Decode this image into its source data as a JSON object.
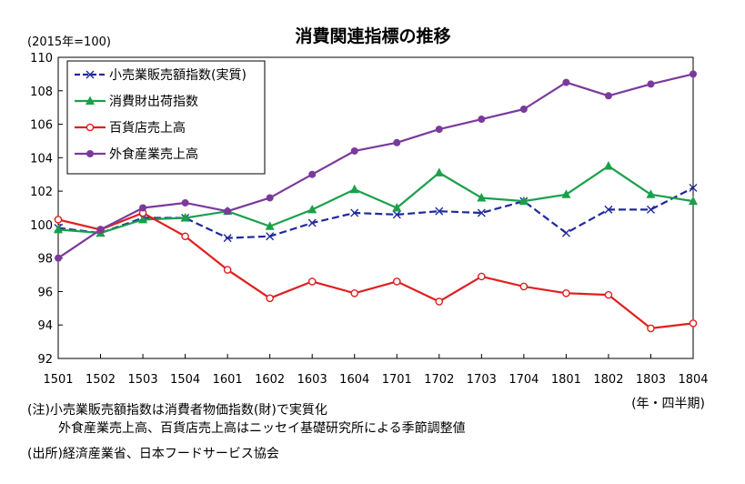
{
  "chart_data": {
    "type": "line",
    "title": "消費関連指標の推移",
    "unit_label": "(2015年=100)",
    "xlabel": "(年・四半期)",
    "ylabel": "",
    "categories": [
      "1501",
      "1502",
      "1503",
      "1504",
      "1601",
      "1602",
      "1603",
      "1604",
      "1701",
      "1702",
      "1703",
      "1704",
      "1801",
      "1802",
      "1803",
      "1804"
    ],
    "ylim": [
      92,
      110
    ],
    "yticks": [
      92,
      94,
      96,
      98,
      100,
      102,
      104,
      106,
      108,
      110
    ],
    "grid": false,
    "legend_position": "top-left",
    "series": [
      {
        "name": "小売業販売額指数(実質)",
        "color": "#1f2a9c",
        "dash": "8,4",
        "marker": "x",
        "values": [
          99.8,
          99.5,
          100.4,
          100.4,
          99.2,
          99.3,
          100.1,
          100.7,
          100.6,
          100.8,
          100.7,
          101.4,
          99.5,
          100.9,
          100.9,
          102.2
        ]
      },
      {
        "name": "消費財出荷指数",
        "color": "#1aa04a",
        "dash": "",
        "marker": "triangle",
        "values": [
          99.7,
          99.5,
          100.3,
          100.4,
          100.8,
          99.9,
          100.9,
          102.1,
          101.0,
          103.1,
          101.6,
          101.4,
          101.8,
          103.5,
          101.8,
          101.4
        ]
      },
      {
        "name": "百貨店売上高",
        "color": "#e02020",
        "dash": "",
        "marker": "circle-open",
        "values": [
          100.3,
          99.7,
          100.7,
          99.3,
          97.3,
          95.6,
          96.6,
          95.9,
          96.6,
          95.4,
          96.9,
          96.3,
          95.9,
          95.8,
          93.8,
          94.1
        ]
      },
      {
        "name": "外食産業売上高",
        "color": "#7a3a9c",
        "dash": "",
        "marker": "circle",
        "values": [
          98.0,
          99.7,
          101.0,
          101.3,
          100.8,
          101.6,
          103.0,
          104.4,
          104.9,
          105.7,
          106.3,
          106.9,
          108.5,
          107.7,
          108.4,
          109.0
        ]
      }
    ]
  },
  "notes": {
    "line1": "(注)小売業販売額指数は消費者物価指数(財)で実質化",
    "line2": "外食産業売上高、百貨店売上高はニッセイ基礎研究所による季節調整値",
    "line3": "(出所)経済産業省、日本フードサービス協会"
  }
}
